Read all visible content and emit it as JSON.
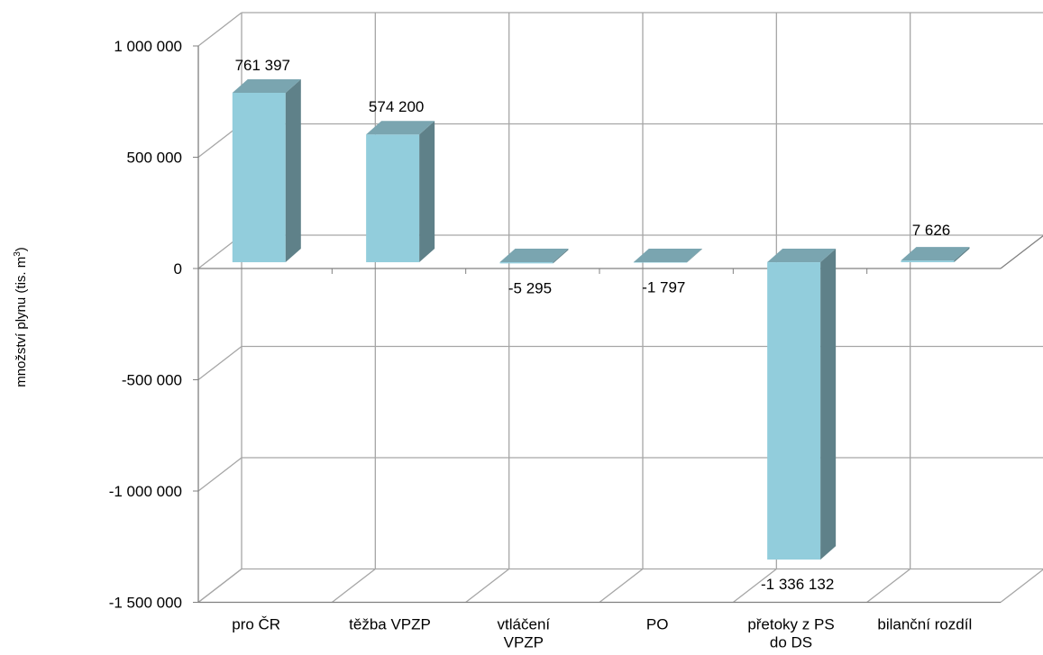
{
  "chart_data": {
    "type": "bar",
    "categories": [
      [
        "pro ČR"
      ],
      [
        "těžba VPZP"
      ],
      [
        "vtláčení",
        "VPZP"
      ],
      [
        "PO"
      ],
      [
        "přetoky z PS",
        "do DS"
      ],
      [
        "bilanční rozdíl"
      ]
    ],
    "values": [
      761397,
      574200,
      -5295,
      -1797,
      -1336132,
      7626
    ],
    "data_labels": [
      "761 397",
      "574 200",
      "-5 295",
      "-1 797",
      "-1 336 132",
      "7 626"
    ],
    "ylabel": "množství plynu (tis. m",
    "ylabel_superscript": "3",
    "ylabel_suffix": ")",
    "ylim": [
      -1500000,
      1000000
    ],
    "yticks": [
      1000000,
      500000,
      0,
      -500000,
      -1000000,
      -1500000
    ],
    "ytick_labels": [
      "1 000 000",
      "500 000",
      "0",
      "-500 000",
      "-1 000 000",
      "-1 500 000"
    ],
    "grid": true,
    "colors": {
      "bar_front": "#92CDDC",
      "bar_side": "#5F8189",
      "bar_top": "#7AA5B0",
      "grid": "#A6A6A6",
      "axis": "#808080"
    }
  }
}
